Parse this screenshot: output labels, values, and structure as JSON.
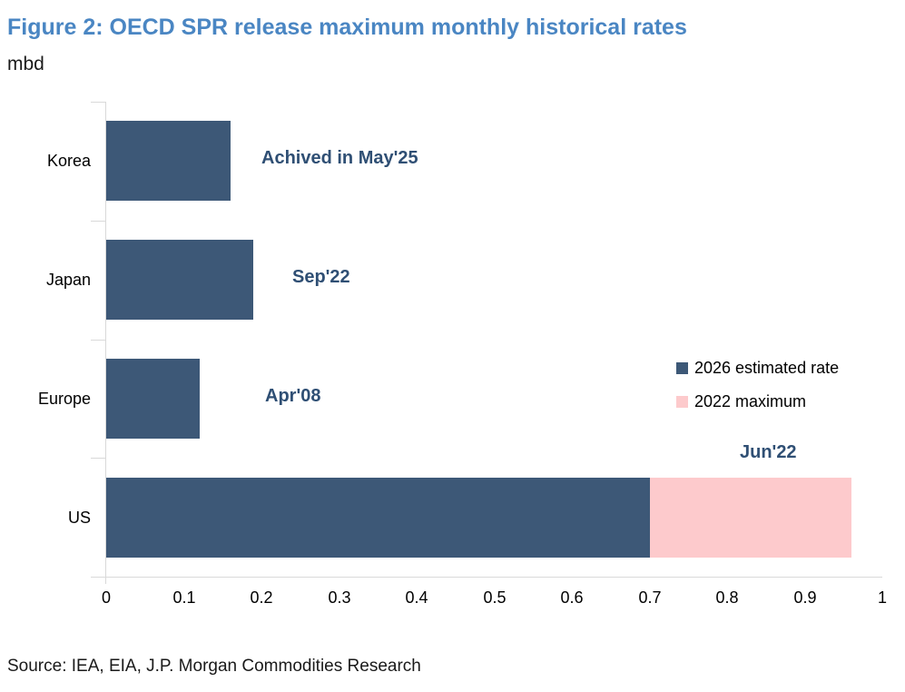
{
  "figure": {
    "title": "Figure 2: OECD SPR release maximum monthly historical rates",
    "unit_label": "mbd",
    "source": "Source: IEA, EIA, J.P. Morgan Commodities Research"
  },
  "colors": {
    "title_blue": "#4A86C3",
    "bar_blue": "#3D5877",
    "bar_pink": "#FDCACC",
    "annotation_blue": "#2F4F74",
    "axis_gray": "#D9D9D9"
  },
  "chart_data": {
    "type": "bar",
    "orientation": "horizontal",
    "title": "Figure 2: OECD SPR release maximum monthly historical rates",
    "ylabel": "mbd",
    "xlabel": "",
    "xlim": [
      0,
      1
    ],
    "xtick_labels": [
      "0",
      "0.1",
      "0.2",
      "0.3",
      "0.4",
      "0.5",
      "0.6",
      "0.7",
      "0.8",
      "0.9",
      "1"
    ],
    "grid": false,
    "categories": [
      "Korea",
      "Japan",
      "Europe",
      "US"
    ],
    "series": [
      {
        "name": "2026 estimated rate",
        "color_key": "bar_blue",
        "values": [
          0.16,
          0.19,
          0.12,
          0.7
        ]
      },
      {
        "name": "2022 maximum",
        "color_key": "bar_pink",
        "values": [
          0,
          0,
          0,
          0.26
        ]
      }
    ],
    "annotations": [
      {
        "category": "Korea",
        "text": "Achived in May'25"
      },
      {
        "category": "Japan",
        "text": "Sep'22"
      },
      {
        "category": "Europe",
        "text": "Apr'08"
      },
      {
        "category": "US",
        "text": "Jun'22"
      }
    ],
    "legend_position": "middle-right"
  }
}
